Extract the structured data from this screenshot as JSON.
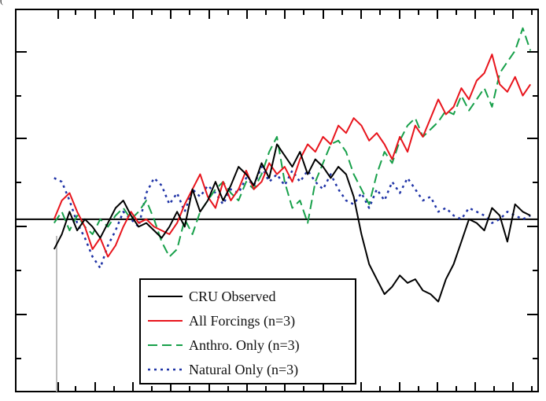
{
  "panel_label": "(",
  "chart_data": {
    "type": "line",
    "title": "",
    "xlabel": "",
    "ylabel": "",
    "xlim": [
      0,
      136
    ],
    "ylim": [
      -0.46,
      0.56
    ],
    "grid": false,
    "zero_line": true,
    "legend": {
      "placement": "bottom-center",
      "entries": [
        {
          "label": "CRU Observed",
          "color": "#000000",
          "style": "solid"
        },
        {
          "label": "All Forcings (n=3)",
          "color": "#e8141c",
          "style": "solid"
        },
        {
          "label": "Anthro. Only (n=3)",
          "color": "#17a04a",
          "style": "dashed"
        },
        {
          "label": "Natural Only (n=3)",
          "color": "#1f33a6",
          "style": "dotted"
        }
      ]
    },
    "series": [
      {
        "name": "CRU Observed",
        "color": "#000000",
        "style": "solid",
        "x": [
          10,
          12,
          14,
          16,
          18,
          20,
          22,
          24,
          26,
          28,
          30,
          32,
          34,
          36,
          38,
          40,
          42,
          44,
          46,
          48,
          50,
          52,
          54,
          56,
          58,
          60,
          62,
          64,
          66,
          68,
          70,
          72,
          74,
          76,
          78,
          80,
          82,
          84,
          86,
          88,
          90,
          92,
          94,
          96,
          98,
          100,
          102,
          104,
          106,
          108,
          110,
          112,
          114,
          116,
          118,
          120,
          122,
          124,
          126,
          128,
          130,
          132,
          134
        ],
        "y": [
          -0.08,
          -0.04,
          0.02,
          -0.03,
          0.0,
          -0.02,
          -0.05,
          -0.01,
          0.03,
          0.05,
          0.01,
          -0.02,
          -0.01,
          -0.03,
          -0.05,
          -0.02,
          0.02,
          -0.02,
          0.08,
          0.02,
          0.05,
          0.1,
          0.05,
          0.09,
          0.14,
          0.12,
          0.09,
          0.15,
          0.11,
          0.2,
          0.17,
          0.14,
          0.18,
          0.12,
          0.16,
          0.14,
          0.11,
          0.14,
          0.12,
          0.06,
          -0.04,
          -0.12,
          -0.16,
          -0.2,
          -0.18,
          -0.15,
          -0.17,
          -0.16,
          -0.19,
          -0.2,
          -0.22,
          -0.16,
          -0.12,
          -0.06,
          0.0,
          -0.01,
          -0.03,
          0.03,
          0.01,
          -0.06,
          0.04,
          0.02,
          0.01
        ]
      },
      {
        "name": "All Forcings (n=3)",
        "color": "#e8141c",
        "style": "solid",
        "x": [
          10,
          12,
          14,
          16,
          18,
          20,
          22,
          24,
          26,
          28,
          30,
          32,
          34,
          36,
          38,
          40,
          42,
          44,
          46,
          48,
          50,
          52,
          54,
          56,
          58,
          60,
          62,
          64,
          66,
          68,
          70,
          72,
          74,
          76,
          78,
          80,
          82,
          84,
          86,
          88,
          90,
          92,
          94,
          96,
          98,
          100,
          102,
          104,
          106,
          108,
          110,
          112,
          114,
          116,
          118,
          120,
          122,
          124,
          126,
          128,
          130,
          132,
          134
        ],
        "y": [
          0.0,
          0.05,
          0.07,
          0.02,
          -0.02,
          -0.08,
          -0.05,
          -0.1,
          -0.07,
          -0.02,
          0.02,
          -0.01,
          0.0,
          -0.02,
          -0.03,
          -0.04,
          -0.01,
          0.04,
          0.08,
          0.12,
          0.06,
          0.03,
          0.1,
          0.05,
          0.08,
          0.13,
          0.08,
          0.1,
          0.15,
          0.12,
          0.14,
          0.1,
          0.16,
          0.2,
          0.18,
          0.22,
          0.2,
          0.25,
          0.23,
          0.27,
          0.25,
          0.21,
          0.23,
          0.2,
          0.16,
          0.22,
          0.18,
          0.25,
          0.22,
          0.27,
          0.32,
          0.28,
          0.3,
          0.35,
          0.32,
          0.37,
          0.39,
          0.44,
          0.36,
          0.34,
          0.38,
          0.33,
          0.36
        ]
      },
      {
        "name": "Anthro. Only (n=3)",
        "color": "#17a04a",
        "style": "dashed",
        "x": [
          10,
          12,
          14,
          16,
          18,
          20,
          22,
          24,
          26,
          28,
          30,
          32,
          34,
          36,
          38,
          40,
          42,
          44,
          46,
          48,
          50,
          52,
          54,
          56,
          58,
          60,
          62,
          64,
          66,
          68,
          70,
          72,
          74,
          76,
          78,
          80,
          82,
          84,
          86,
          88,
          90,
          92,
          94,
          96,
          98,
          100,
          102,
          104,
          106,
          108,
          110,
          112,
          114,
          116,
          118,
          120,
          122,
          124,
          126,
          128,
          130,
          132,
          134
        ],
        "y": [
          -0.01,
          0.02,
          -0.03,
          0.01,
          -0.02,
          -0.04,
          0.0,
          -0.02,
          0.01,
          0.03,
          0.0,
          0.02,
          0.05,
          0.0,
          -0.06,
          -0.1,
          -0.08,
          0.0,
          -0.04,
          0.02,
          0.05,
          0.08,
          0.1,
          0.07,
          0.05,
          0.1,
          0.08,
          0.12,
          0.18,
          0.22,
          0.1,
          0.03,
          0.05,
          -0.01,
          0.1,
          0.15,
          0.2,
          0.21,
          0.18,
          0.12,
          0.08,
          0.04,
          0.12,
          0.18,
          0.15,
          0.21,
          0.25,
          0.27,
          0.22,
          0.24,
          0.26,
          0.29,
          0.28,
          0.33,
          0.29,
          0.32,
          0.35,
          0.3,
          0.39,
          0.42,
          0.45,
          0.51,
          0.45
        ]
      },
      {
        "name": "Natural Only (n=3)",
        "color": "#1f33a6",
        "style": "dotted",
        "x": [
          10,
          12,
          14,
          16,
          18,
          20,
          22,
          24,
          26,
          28,
          30,
          32,
          34,
          36,
          38,
          40,
          42,
          44,
          46,
          48,
          50,
          52,
          54,
          56,
          58,
          60,
          62,
          64,
          66,
          68,
          70,
          72,
          74,
          76,
          78,
          80,
          82,
          84,
          86,
          88,
          90,
          92,
          94,
          96,
          98,
          100,
          102,
          104,
          106,
          108,
          110,
          112,
          114,
          116,
          118,
          120,
          122,
          124,
          126,
          128,
          130,
          132,
          134
        ],
        "y": [
          0.11,
          0.1,
          0.05,
          -0.01,
          -0.05,
          -0.1,
          -0.13,
          -0.07,
          -0.03,
          0.02,
          0.0,
          -0.02,
          0.07,
          0.11,
          0.09,
          0.04,
          0.07,
          0.02,
          0.08,
          0.06,
          0.09,
          0.07,
          0.04,
          0.08,
          0.07,
          0.11,
          0.09,
          0.14,
          0.1,
          0.12,
          0.09,
          0.13,
          0.1,
          0.13,
          0.1,
          0.08,
          0.12,
          0.08,
          0.05,
          0.04,
          0.07,
          0.03,
          0.08,
          0.05,
          0.1,
          0.07,
          0.11,
          0.08,
          0.05,
          0.06,
          0.02,
          0.03,
          0.01,
          0.0,
          0.03,
          0.02,
          0.01,
          -0.01,
          0.0,
          0.02,
          0.01,
          0.0,
          0.01
        ]
      }
    ]
  }
}
